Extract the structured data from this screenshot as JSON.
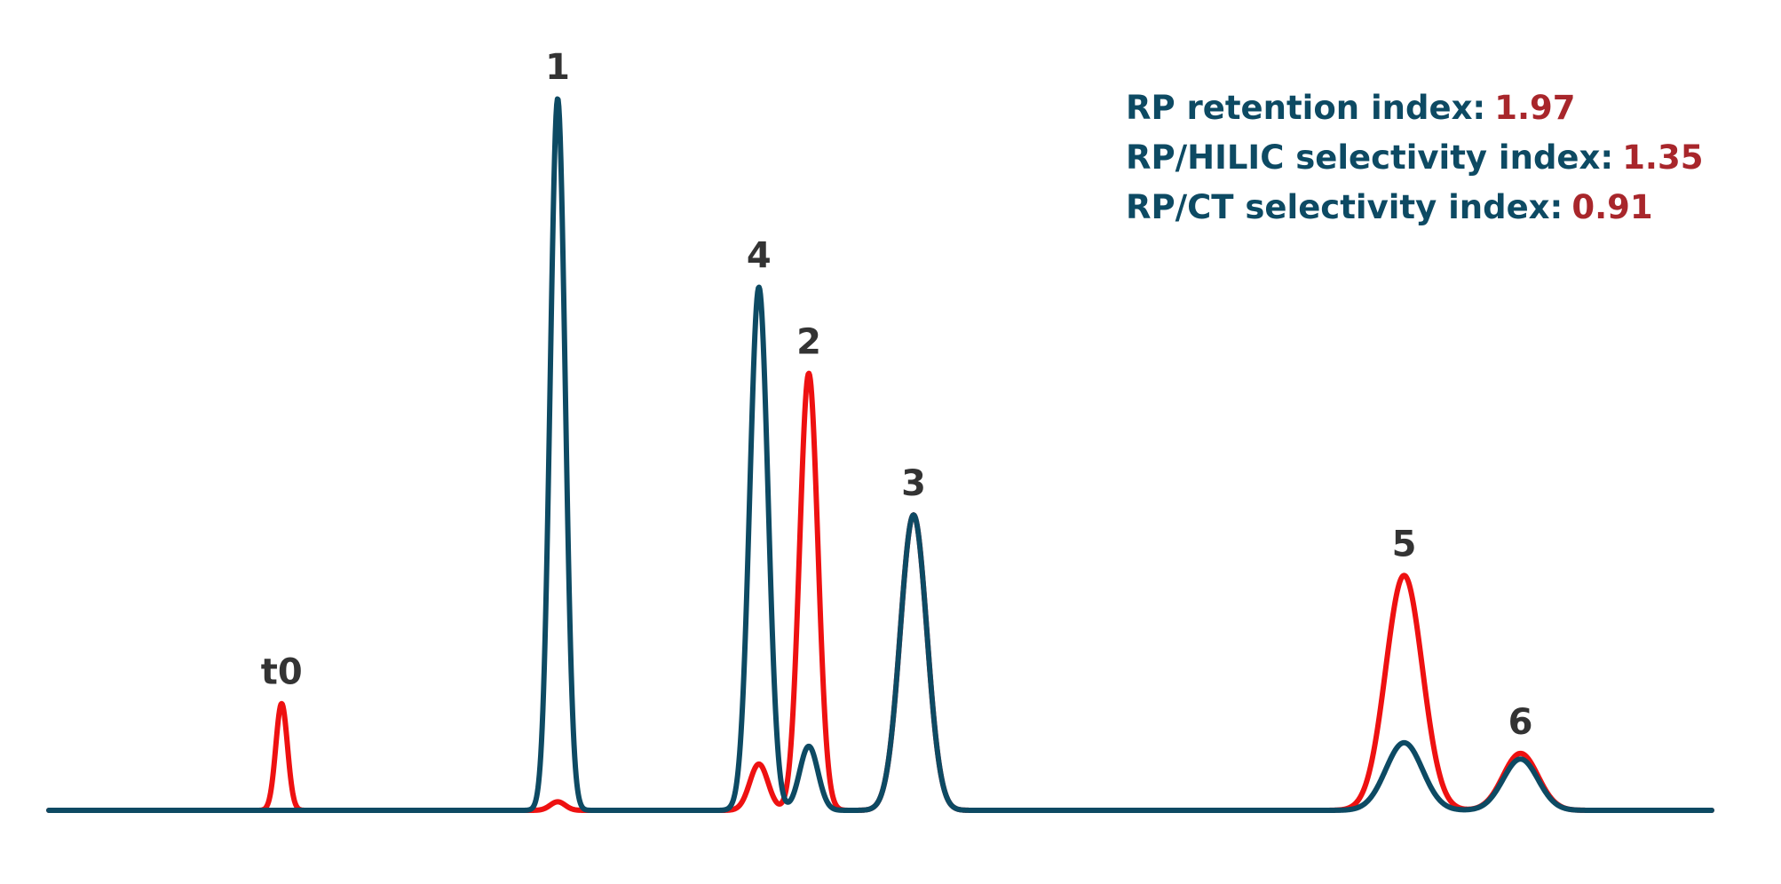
{
  "chart_data": {
    "type": "line",
    "title": "",
    "xlabel": "",
    "ylabel": "",
    "grid": false,
    "xlim": [
      0,
      100
    ],
    "ylim": [
      0,
      100
    ],
    "colors": {
      "red_trace": "#ee1111",
      "blue_trace": "#0d4a63",
      "peak_label": "#333333",
      "index_label": "#0d4a63",
      "index_value": "#a8262b"
    },
    "peaks": [
      {
        "label": "t0",
        "x": 14.0,
        "red_height": 15.0,
        "blue_height": 0,
        "width": 0.35
      },
      {
        "label": "1",
        "x": 30.6,
        "red_height": 1.2,
        "blue_height": 100,
        "width": 0.45
      },
      {
        "label": "4",
        "x": 42.7,
        "red_height": 6.5,
        "blue_height": 73.5,
        "width": 0.55
      },
      {
        "label": "2",
        "x": 45.7,
        "red_height": 61.4,
        "blue_height": 9.0,
        "width": 0.55
      },
      {
        "label": "3",
        "x": 52.0,
        "red_height": 41.5,
        "blue_height": 41.5,
        "width": 0.8
      },
      {
        "label": "5",
        "x": 81.5,
        "red_height": 33.0,
        "blue_height": 9.5,
        "width": 1.1
      },
      {
        "label": "6",
        "x": 88.5,
        "red_height": 8.0,
        "blue_height": 7.2,
        "width": 1.05
      }
    ],
    "annotations": [
      {
        "label": "RP retention index:",
        "value": "1.97"
      },
      {
        "label": "RP/HILIC selectivity index:",
        "value": "1.35"
      },
      {
        "label": "RP/CT selectivity index:",
        "value": "0.91"
      }
    ]
  }
}
